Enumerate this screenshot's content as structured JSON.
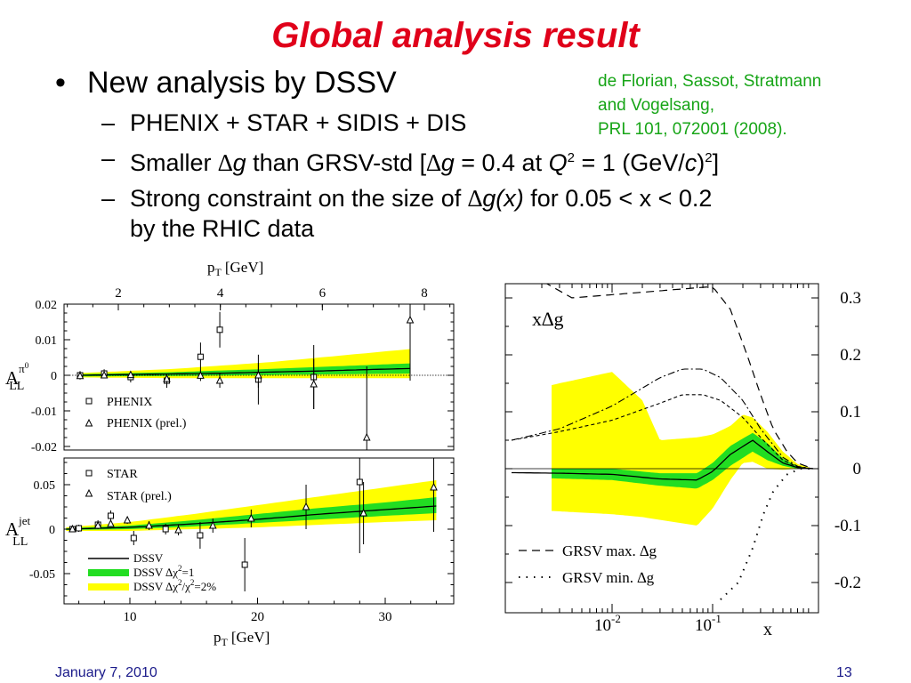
{
  "slide": {
    "title": "Global analysis result",
    "footer_date": "January 7, 2010",
    "page_number": "13"
  },
  "bullets": {
    "main": "New analysis by DSSV",
    "sub1": "PHENIX + STAR + SIDIS + DIS",
    "sub2": {
      "p1": "Smaller ",
      "delta1": "∆",
      "g1": "g",
      "p2": " than GRSV-std [",
      "delta2": "∆",
      "g2": "g",
      "p3": " = 0.4 at ",
      "q": "Q",
      "sup1": "2",
      "p4": " = 1 (GeV/",
      "c": "c",
      "p5": ")",
      "sup2": "2",
      "p6": "]"
    },
    "sub3": {
      "p1": "Strong constraint on the size of ",
      "delta": "∆",
      "gx": "g(x)",
      "p2": " for 0.05 < x < 0.2",
      "line2": "by the RHIC data"
    }
  },
  "citation": {
    "line1": "de Florian, Sassot, Stratmann",
    "line2": "and Vogelsang,",
    "line3": "PRL 101, 072001 (2008)."
  },
  "colors": {
    "title": "#e0001a",
    "citation": "#17a517",
    "band_green": "#22dd22",
    "band_yellow": "#ffff00",
    "footer": "#1a1a8a"
  },
  "chart_data": [
    {
      "type": "scatter",
      "panel": "PHENIX pi0",
      "ylabel_main": "A",
      "ylabel_sup": "π",
      "ylabel_supsup": "0",
      "ylabel_sub": "LL",
      "top_axis_label": "p",
      "top_axis_label_sub": "T",
      "top_axis_unit": "[GeV]",
      "top_axis_ticks": [
        {
          "label": "2",
          "value": 2
        },
        {
          "label": "4",
          "value": 4
        },
        {
          "label": "6",
          "value": 6
        },
        {
          "label": "8",
          "value": 8
        }
      ],
      "xlim": [
        0.6,
        8.5
      ],
      "ylim": [
        -0.02,
        0.022
      ],
      "y_ticks": [
        {
          "label": "0.02",
          "value": 0.02
        },
        {
          "label": "0.01",
          "value": 0.01
        },
        {
          "label": "0",
          "value": 0
        },
        {
          "label": "-0.01",
          "value": -0.01
        },
        {
          "label": "-0.02",
          "value": -0.02
        }
      ],
      "legend": [
        {
          "label": "PHENIX",
          "marker": "square"
        },
        {
          "label": "PHENIX (prel.)",
          "marker": "triangle"
        }
      ],
      "series": [
        {
          "name": "PHENIX",
          "marker": "square",
          "points": [
            {
              "x": 1.05,
              "y": 0.0,
              "err": 0.0012
            },
            {
              "x": 1.55,
              "y": 0.0005,
              "err": 0.0012
            },
            {
              "x": 2.1,
              "y": -0.0005,
              "err": 0.0015
            },
            {
              "x": 2.85,
              "y": -0.0015,
              "err": 0.002
            },
            {
              "x": 3.55,
              "y": 0.0052,
              "err": 0.004
            },
            {
              "x": 3.95,
              "y": 0.0128,
              "err": 0.005
            },
            {
              "x": 4.75,
              "y": -0.0012,
              "err": 0.007
            },
            {
              "x": 5.9,
              "y": -0.0005,
              "err": 0.009
            }
          ]
        },
        {
          "name": "PHENIX (prel.)",
          "marker": "triangle",
          "points": [
            {
              "x": 1.05,
              "y": -0.0002,
              "err": 0.0008
            },
            {
              "x": 1.55,
              "y": 0.0,
              "err": 0.0008
            },
            {
              "x": 2.1,
              "y": 0.0001,
              "err": 0.0009
            },
            {
              "x": 2.85,
              "y": -0.001,
              "err": 0.0011
            },
            {
              "x": 3.55,
              "y": -0.0001,
              "err": 0.0015
            },
            {
              "x": 3.95,
              "y": -0.0015,
              "err": 0.002
            },
            {
              "x": 4.75,
              "y": 0.0,
              "err": 0.0035
            },
            {
              "x": 5.9,
              "y": -0.0025,
              "err": 0.007
            },
            {
              "x": 7.0,
              "y": -0.0175,
              "err": 0.02
            },
            {
              "x": 7.9,
              "y": 0.0155,
              "err": 0.017
            }
          ]
        }
      ],
      "curve": {
        "x": [
          1.0,
          2.0,
          3.0,
          4.0,
          5.0,
          6.0,
          7.0,
          8.0
        ],
        "y": [
          0.0,
          0.0002,
          0.0004,
          0.0006,
          0.0009,
          0.0012,
          0.0016,
          0.002
        ]
      },
      "band_green": {
        "x": [
          1.0,
          3.0,
          5.0,
          8.0
        ],
        "lo": [
          -0.0003,
          -0.0002,
          0.0001,
          0.0005
        ],
        "hi": [
          0.0003,
          0.0009,
          0.0018,
          0.0034
        ]
      },
      "band_yellow": {
        "x": [
          1.0,
          3.0,
          5.0,
          8.0
        ],
        "lo": [
          -0.0006,
          -0.0008,
          -0.0008,
          -0.0008
        ],
        "hi": [
          0.0006,
          0.0018,
          0.0037,
          0.0075
        ]
      }
    },
    {
      "type": "scatter",
      "panel": "STAR jet",
      "ylabel_main": "A",
      "ylabel_sup": "jet",
      "ylabel_sub": "LL",
      "xlabel": "p",
      "xlabel_sub": "T",
      "xlabel_unit": "[GeV]",
      "x_ticks": [
        {
          "label": "10",
          "value": 10
        },
        {
          "label": "20",
          "value": 20
        },
        {
          "label": "30",
          "value": 30
        }
      ],
      "xlim": [
        5,
        35
      ],
      "ylim": [
        -0.08,
        0.075
      ],
      "y_ticks": [
        {
          "label": "0.05",
          "value": 0.05
        },
        {
          "label": "0",
          "value": 0
        },
        {
          "label": "-0.05",
          "value": -0.05
        }
      ],
      "legend": [
        {
          "label": "STAR",
          "marker": "square"
        },
        {
          "label": "STAR (prel.)",
          "marker": "triangle"
        }
      ],
      "band_legend": {
        "dssv": "DSSV",
        "green_pre": "DSSV ∆χ",
        "green_sup": "2",
        "green_post": "=1",
        "yellow_pre": "DSSV ∆χ",
        "yellow_sup1": "2",
        "yellow_mid": "/χ",
        "yellow_sup2": "2",
        "yellow_post": "=2%"
      },
      "series": [
        {
          "name": "STAR",
          "marker": "square",
          "points": [
            {
              "x": 5.5,
              "y": 0.0,
              "err": 0.003
            },
            {
              "x": 6.0,
              "y": 0.001,
              "err": 0.004
            },
            {
              "x": 7.5,
              "y": 0.005,
              "err": 0.005
            },
            {
              "x": 8.5,
              "y": 0.015,
              "err": 0.006
            },
            {
              "x": 10.3,
              "y": -0.01,
              "err": 0.008
            },
            {
              "x": 12.8,
              "y": 0.0,
              "err": 0.006
            },
            {
              "x": 15.5,
              "y": -0.007,
              "err": 0.015
            },
            {
              "x": 19.0,
              "y": -0.04,
              "err": 0.03
            },
            {
              "x": 28.0,
              "y": 0.053,
              "err": 0.08
            }
          ]
        },
        {
          "name": "STAR (prel.)",
          "marker": "triangle",
          "points": [
            {
              "x": 5.5,
              "y": 0.0,
              "err": 0.002
            },
            {
              "x": 7.5,
              "y": 0.004,
              "err": 0.003
            },
            {
              "x": 8.5,
              "y": 0.006,
              "err": 0.003
            },
            {
              "x": 9.8,
              "y": 0.01,
              "err": 0.004
            },
            {
              "x": 11.5,
              "y": 0.004,
              "err": 0.005
            },
            {
              "x": 13.8,
              "y": -0.001,
              "err": 0.006
            },
            {
              "x": 16.5,
              "y": 0.004,
              "err": 0.008
            },
            {
              "x": 19.5,
              "y": 0.012,
              "err": 0.01
            },
            {
              "x": 23.8,
              "y": 0.025,
              "err": 0.025
            },
            {
              "x": 28.3,
              "y": 0.018,
              "err": 0.035
            },
            {
              "x": 33.8,
              "y": 0.047,
              "err": 0.05
            }
          ]
        }
      ],
      "curve": {
        "x": [
          5,
          10,
          15,
          20,
          25,
          30,
          34
        ],
        "y": [
          0.0,
          0.002,
          0.006,
          0.011,
          0.017,
          0.022,
          0.026
        ]
      },
      "band_green": {
        "x": [
          5,
          10,
          15,
          20,
          25,
          30,
          34
        ],
        "lo": [
          -0.001,
          0.0,
          0.003,
          0.007,
          0.011,
          0.015,
          0.018
        ],
        "hi": [
          0.001,
          0.004,
          0.01,
          0.017,
          0.024,
          0.03,
          0.036
        ]
      },
      "band_yellow": {
        "x": [
          5,
          10,
          15,
          20,
          25,
          30,
          34
        ],
        "lo": [
          -0.002,
          -0.002,
          0.0,
          0.002,
          0.005,
          0.008,
          0.01
        ],
        "hi": [
          0.002,
          0.008,
          0.017,
          0.027,
          0.037,
          0.047,
          0.055
        ]
      }
    },
    {
      "type": "line",
      "panel": "x Delta g",
      "title_x": "x",
      "title_delta": "∆",
      "title_g": "g",
      "xlabel": "x",
      "xscale": "log",
      "xlim": [
        0.001,
        1
      ],
      "ylim": [
        -0.22,
        0.34
      ],
      "x_ticks": [
        {
          "base": "10",
          "exp": "-2",
          "value": 0.01
        },
        {
          "base": "10",
          "exp": "-1",
          "value": 0.1
        }
      ],
      "y_ticks": [
        {
          "label": "0.3",
          "value": 0.3
        },
        {
          "label": "0.2",
          "value": 0.2
        },
        {
          "label": "0.1",
          "value": 0.1
        },
        {
          "label": "0",
          "value": 0
        },
        {
          "label": "-0.1",
          "value": -0.1
        },
        {
          "label": "-0.2",
          "value": -0.2
        }
      ],
      "legend": {
        "max_pre": "GRSV max. ",
        "max_delta": "∆",
        "max_g": "g",
        "min_pre": "GRSV min. ",
        "min_delta": "∆",
        "min_g": "g"
      },
      "dssv": {
        "x": [
          0.001,
          0.003,
          0.01,
          0.03,
          0.07,
          0.1,
          0.15,
          0.25,
          0.35,
          0.5,
          0.7,
          1.0
        ],
        "y": [
          -0.007,
          -0.008,
          -0.01,
          -0.018,
          -0.02,
          -0.005,
          0.025,
          0.05,
          0.03,
          0.01,
          0.002,
          0.0
        ]
      },
      "band_green": {
        "x": [
          0.001,
          0.01,
          0.03,
          0.07,
          0.1,
          0.15,
          0.25,
          0.35,
          0.5,
          0.7,
          1.0
        ],
        "lo": [
          -0.015,
          -0.02,
          -0.03,
          -0.035,
          -0.02,
          0.005,
          0.03,
          0.015,
          0.005,
          0.0,
          0.0
        ],
        "hi": [
          0.0,
          0.0,
          -0.008,
          -0.008,
          0.01,
          0.04,
          0.063,
          0.045,
          0.018,
          0.004,
          0.0
        ]
      },
      "band_yellow": {
        "x": [
          0.001,
          0.003,
          0.01,
          0.02,
          0.03,
          0.07,
          0.1,
          0.15,
          0.2,
          0.25,
          0.35,
          0.5,
          0.7,
          1.0
        ],
        "lo": [
          -0.07,
          -0.075,
          -0.08,
          -0.085,
          -0.09,
          -0.1,
          -0.07,
          -0.02,
          0.01,
          0.012,
          0.0,
          -0.002,
          0.0,
          0.0
        ],
        "hi": [
          0.13,
          0.15,
          0.17,
          0.12,
          0.05,
          0.055,
          0.06,
          0.075,
          0.095,
          0.09,
          0.065,
          0.03,
          0.008,
          0.0
        ]
      },
      "grsv_max": {
        "x": [
          0.001,
          0.002,
          0.004,
          0.1,
          0.15,
          0.22,
          0.3,
          0.4,
          0.55,
          0.7,
          1.0
        ],
        "y": [
          0.37,
          0.33,
          0.3,
          0.32,
          0.28,
          0.2,
          0.13,
          0.07,
          0.03,
          0.01,
          0.0
        ]
      },
      "grsv_min": {
        "x": [
          0.12,
          0.18,
          0.25,
          0.32,
          0.4,
          0.55,
          0.75,
          1.0
        ],
        "y": [
          -0.23,
          -0.2,
          -0.14,
          -0.08,
          -0.04,
          -0.01,
          0.0,
          0.0
        ]
      },
      "grsv_std": {
        "x": [
          0.001,
          0.003,
          0.01,
          0.03,
          0.05,
          0.08,
          0.12,
          0.2,
          0.3,
          0.5,
          0.7,
          1.0
        ],
        "y": [
          0.05,
          0.07,
          0.11,
          0.16,
          0.175,
          0.175,
          0.16,
          0.12,
          0.07,
          0.02,
          0.004,
          0.0
        ]
      },
      "grsv_val": {
        "x": [
          0.001,
          0.003,
          0.01,
          0.03,
          0.05,
          0.08,
          0.12,
          0.2,
          0.3,
          0.5,
          0.7,
          1.0
        ],
        "y": [
          0.05,
          0.065,
          0.085,
          0.115,
          0.13,
          0.13,
          0.12,
          0.09,
          0.055,
          0.015,
          0.003,
          0.0
        ]
      }
    }
  ]
}
